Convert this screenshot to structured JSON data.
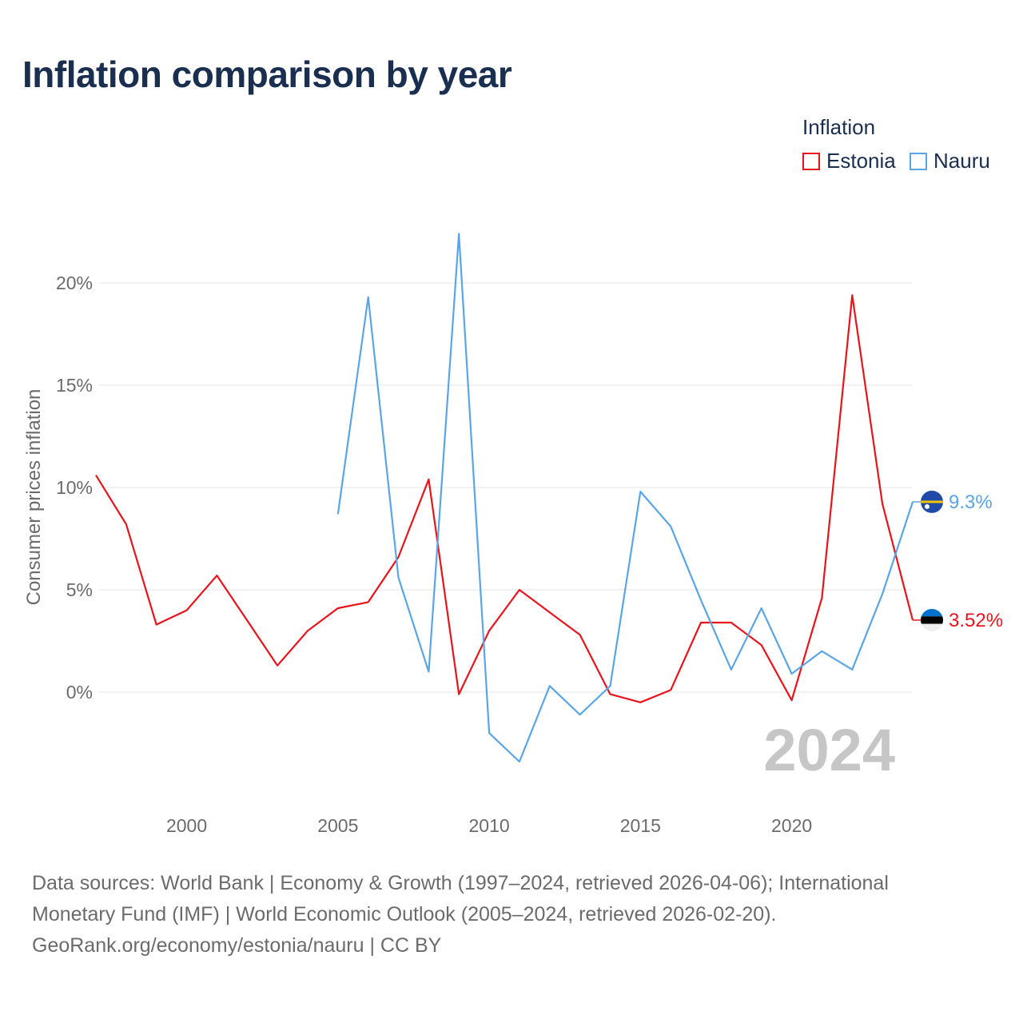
{
  "title": "Inflation comparison by year",
  "legend": {
    "title": "Inflation",
    "items": [
      {
        "label": "Estonia",
        "color": "#e8141c"
      },
      {
        "label": "Nauru",
        "color": "#5aa5e6"
      }
    ]
  },
  "year_label": "2024",
  "footer": {
    "line1": "Data sources: World Bank | Economy & Growth (1997–2024, retrieved 2026-04-06); International",
    "line2": "Monetary Fund (IMF) | World Economic Outlook (2005–2024, retrieved 2026-02-20).",
    "line3": "GeoRank.org/economy/estonia/nauru | CC BY"
  },
  "chart_data": {
    "type": "line",
    "title": "Inflation comparison by year",
    "xlabel": "",
    "ylabel": "Consumer prices inflation",
    "xlim": [
      1997,
      2024
    ],
    "ylim": [
      -5,
      25
    ],
    "x_ticks": [
      2000,
      2005,
      2010,
      2015,
      2020
    ],
    "y_ticks": [
      0,
      5,
      10,
      15,
      20
    ],
    "y_tick_labels": [
      "0%",
      "5%",
      "10%",
      "15%",
      "20%"
    ],
    "grid": true,
    "legend_position": "top-right",
    "series": [
      {
        "name": "Estonia",
        "color": "#e8141c",
        "end_label": "3.52%",
        "x": [
          1997,
          1998,
          1999,
          2000,
          2001,
          2002,
          2003,
          2004,
          2005,
          2006,
          2007,
          2008,
          2009,
          2010,
          2011,
          2012,
          2013,
          2014,
          2015,
          2016,
          2017,
          2018,
          2019,
          2020,
          2021,
          2022,
          2023,
          2024
        ],
        "values": [
          10.6,
          8.2,
          3.3,
          4.0,
          5.7,
          3.5,
          1.3,
          3.0,
          4.1,
          4.4,
          6.6,
          10.4,
          -0.1,
          3.0,
          5.0,
          3.9,
          2.8,
          -0.1,
          -0.5,
          0.1,
          3.4,
          3.4,
          2.3,
          -0.4,
          4.6,
          19.4,
          9.2,
          3.52
        ]
      },
      {
        "name": "Nauru",
        "color": "#5aa5e6",
        "end_label": "9.3%",
        "x": [
          2005,
          2006,
          2007,
          2008,
          2009,
          2010,
          2011,
          2012,
          2013,
          2014,
          2015,
          2016,
          2017,
          2018,
          2019,
          2020,
          2021,
          2022,
          2023,
          2024
        ],
        "values": [
          8.7,
          19.3,
          5.6,
          1.0,
          22.4,
          -2.0,
          -3.4,
          0.3,
          -1.1,
          0.3,
          9.8,
          8.1,
          4.5,
          1.1,
          4.1,
          0.9,
          2.0,
          1.1,
          4.8,
          9.3
        ]
      }
    ]
  }
}
